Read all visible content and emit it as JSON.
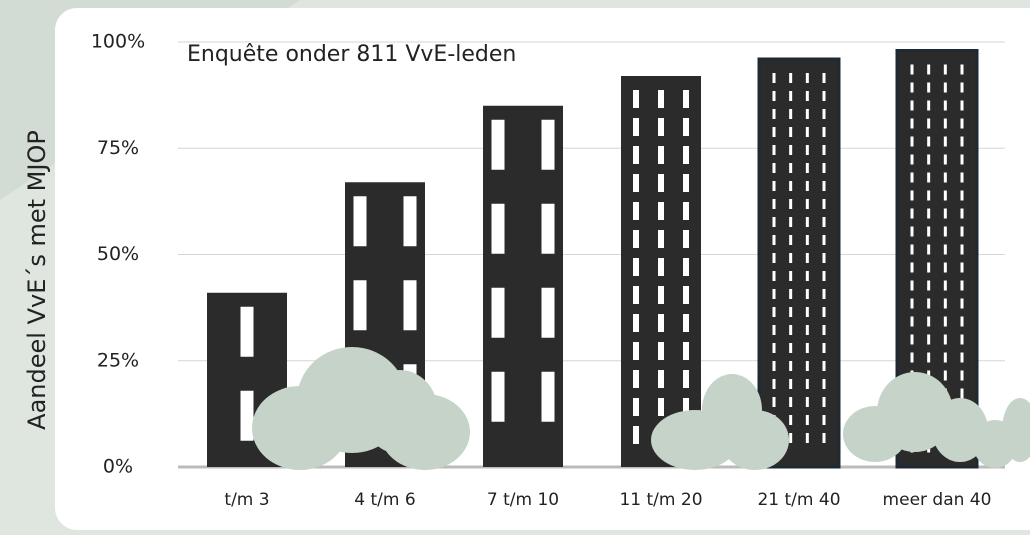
{
  "chart_data": {
    "type": "bar",
    "y_label": "Aandeel VvE´s met MJOP",
    "annotation": "Enquête onder 811 VvE-leden",
    "categories": [
      "t/m 3",
      "4 t/m 6",
      "7 t/m 10",
      "11 t/m 20",
      "21 t/m 40",
      "meer dan 40"
    ],
    "values": [
      41,
      67,
      85,
      92,
      96,
      98
    ],
    "color": "#2b2b2b",
    "ylim": [
      0,
      100
    ],
    "yticks": [
      {
        "value": 0,
        "label": "0%"
      },
      {
        "value": 25,
        "label": "25%"
      },
      {
        "value": 50,
        "label": "50%"
      },
      {
        "value": 75,
        "label": "75%"
      },
      {
        "value": 100,
        "label": "100%"
      }
    ],
    "grid": true
  }
}
